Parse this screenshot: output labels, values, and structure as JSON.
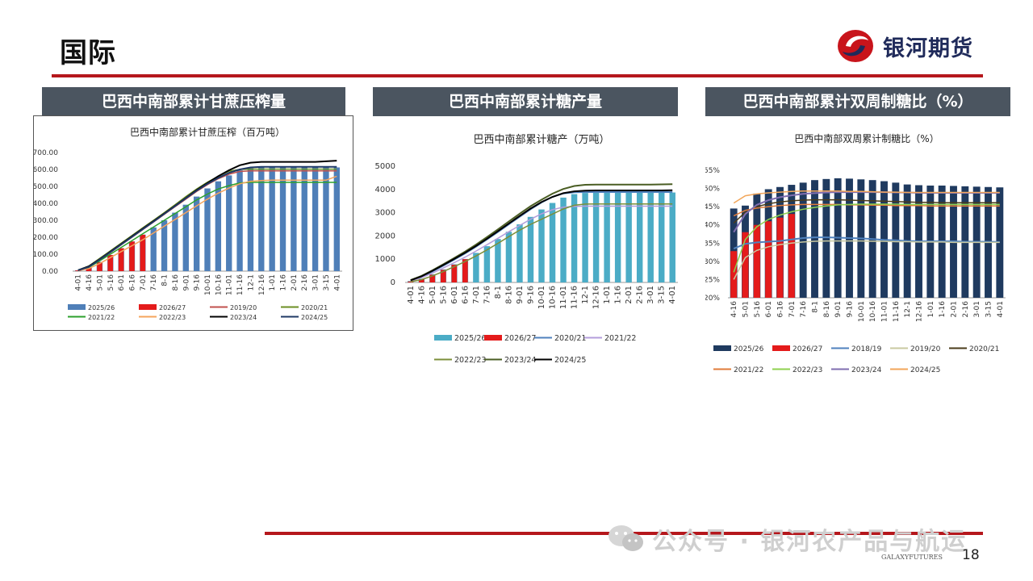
{
  "page": {
    "title": "国际",
    "brand": "银河期货",
    "page_number": "18",
    "watermark": "公众号 · 银河农产品与航运",
    "small_brand": "GALAXYFUTURES"
  },
  "colors": {
    "accent": "#b5171c",
    "header_bg": "#4b5560",
    "brand": "#1f2a5a"
  },
  "panels": [
    {
      "header": "巴西中南部累计甘蔗压榨量"
    },
    {
      "header": "巴西中南部累计糖产量"
    },
    {
      "header": "巴西中南部累计双周制糖比（%）"
    }
  ],
  "chart_data": [
    {
      "type": "bar",
      "title": "巴西中南部累计甘蔗压榨（百万吨）",
      "ylim": [
        0,
        700
      ],
      "yticks": [
        "0.00",
        "100.00",
        "200.00",
        "300.00",
        "400.00",
        "500.00",
        "600.00",
        "700.00"
      ],
      "categories": [
        "4-01",
        "4-16",
        "5-01",
        "5-16",
        "6-01",
        "6-16",
        "7-01",
        "7-16",
        "8-1",
        "8-16",
        "9-01",
        "9-16",
        "10-01",
        "10-16",
        "11-01",
        "11-16",
        "12-1",
        "12-16",
        "1-01",
        "1-16",
        "2-01",
        "2-16",
        "3-01",
        "3-15",
        "4-01"
      ],
      "legend": [
        "2025/26",
        "2026/27",
        "2019/20",
        "2020/21",
        "2021/22",
        "2022/23",
        "2023/24",
        "2024/25"
      ],
      "bars": [
        {
          "name": "2025/26",
          "color": "#4f7fb8",
          "values": [
            5,
            20,
            55,
            95,
            135,
            175,
            215,
            258,
            300,
            345,
            392,
            440,
            488,
            530,
            565,
            595,
            608,
            612,
            612,
            612,
            612,
            612,
            612,
            612,
            612
          ]
        },
        {
          "name": "2026/27",
          "color": "#e41b1b",
          "values": [
            4,
            18,
            52,
            95,
            135,
            175,
            215,
            null,
            null,
            null,
            null,
            null,
            null,
            null,
            null,
            null,
            null,
            null,
            null,
            null,
            null,
            null,
            null,
            null,
            null
          ]
        }
      ],
      "lines": [
        {
          "name": "2019/20",
          "color": "#c0504d",
          "width": 1.5,
          "values": [
            5,
            25,
            65,
            110,
            155,
            200,
            245,
            290,
            335,
            380,
            425,
            470,
            510,
            545,
            572,
            588,
            592,
            592,
            592,
            592,
            592,
            592,
            592,
            592,
            592
          ]
        },
        {
          "name": "2020/21",
          "color": "#6b8e23",
          "width": 1.5,
          "values": [
            6,
            30,
            75,
            120,
            165,
            210,
            255,
            300,
            345,
            392,
            440,
            485,
            525,
            560,
            590,
            600,
            602,
            602,
            602,
            602,
            602,
            602,
            602,
            602,
            602
          ]
        },
        {
          "name": "2021/22",
          "color": "#2ca02c",
          "width": 1.5,
          "values": [
            4,
            22,
            60,
            100,
            140,
            180,
            220,
            260,
            300,
            340,
            380,
            420,
            455,
            485,
            505,
            520,
            524,
            524,
            524,
            524,
            524,
            524,
            524,
            524,
            524
          ]
        },
        {
          "name": "2022/23",
          "color": "#f5a45d",
          "width": 1.5,
          "values": [
            3,
            15,
            45,
            80,
            115,
            150,
            185,
            225,
            265,
            305,
            345,
            385,
            425,
            460,
            490,
            515,
            530,
            535,
            537,
            537,
            537,
            537,
            537,
            537,
            560
          ]
        },
        {
          "name": "2023/24",
          "color": "#000000",
          "width": 2,
          "values": [
            5,
            28,
            70,
            115,
            160,
            205,
            250,
            295,
            340,
            385,
            432,
            478,
            520,
            560,
            595,
            625,
            640,
            645,
            645,
            645,
            645,
            645,
            645,
            648,
            652
          ]
        },
        {
          "name": "2024/25",
          "color": "#1f3864",
          "width": 2,
          "values": [
            5,
            25,
            68,
            112,
            157,
            202,
            247,
            292,
            338,
            384,
            430,
            475,
            515,
            550,
            580,
            600,
            612,
            615,
            615,
            615,
            615,
            615,
            615,
            615,
            615
          ]
        }
      ]
    },
    {
      "type": "bar",
      "title": "巴西中南部累计糖产（万吨）",
      "ylim": [
        0,
        5000
      ],
      "yticks": [
        "0",
        "1000",
        "2000",
        "3000",
        "4000",
        "5000"
      ],
      "categories": [
        "4-01",
        "4-16",
        "5-01",
        "5-16",
        "6-01",
        "6-16",
        "7-01",
        "7-16",
        "8-1",
        "8-16",
        "9-01",
        "9-16",
        "10-01",
        "10-16",
        "11-01",
        "11-16",
        "12-1",
        "12-16",
        "1-01",
        "1-16",
        "2-01",
        "2-16",
        "3-01",
        "3-15",
        "4-01"
      ],
      "legend": [
        "2025/26",
        "2026/27",
        "2020/21",
        "2021/22",
        "2022/23",
        "2023/24",
        "2024/25"
      ],
      "bars": [
        {
          "name": "2025/26",
          "color": "#4bacc6",
          "values": [
            60,
            160,
            350,
            560,
            780,
            1010,
            1270,
            1560,
            1870,
            2180,
            2500,
            2820,
            3140,
            3420,
            3650,
            3800,
            3850,
            3860,
            3860,
            3860,
            3860,
            3860,
            3860,
            3860,
            3870
          ]
        },
        {
          "name": "2026/27",
          "color": "#e41b1b",
          "values": [
            40,
            140,
            330,
            540,
            760,
            1000,
            null,
            null,
            null,
            null,
            null,
            null,
            null,
            null,
            null,
            null,
            null,
            null,
            null,
            null,
            null,
            null,
            null,
            null,
            null
          ]
        }
      ],
      "lines": [
        {
          "name": "2020/21",
          "color": "#4f81bd",
          "width": 2,
          "values": [
            80,
            240,
            470,
            720,
            980,
            1250,
            1540,
            1850,
            2170,
            2500,
            2830,
            3150,
            3440,
            3680,
            3830,
            3880,
            3890,
            3890,
            3890,
            3890,
            3890,
            3890,
            3890,
            3890,
            3890
          ]
        },
        {
          "name": "2021/22",
          "color": "#b39ddb",
          "width": 1.5,
          "values": [
            60,
            200,
            400,
            620,
            850,
            1090,
            1350,
            1620,
            1900,
            2180,
            2450,
            2720,
            2950,
            3130,
            3240,
            3270,
            3280,
            3280,
            3280,
            3280,
            3280,
            3280,
            3280,
            3280,
            3280
          ]
        },
        {
          "name": "2022/23",
          "color": "#7c8f3a",
          "width": 1.5,
          "values": [
            30,
            120,
            280,
            470,
            680,
            900,
            1140,
            1400,
            1680,
            1970,
            2250,
            2500,
            2720,
            2940,
            3160,
            3320,
            3370,
            3380,
            3380,
            3380,
            3380,
            3380,
            3380,
            3380,
            3380
          ]
        },
        {
          "name": "2023/24",
          "color": "#4a5d23",
          "width": 2,
          "values": [
            100,
            280,
            520,
            780,
            1050,
            1330,
            1630,
            1950,
            2280,
            2620,
            2960,
            3280,
            3560,
            3820,
            4020,
            4150,
            4200,
            4210,
            4210,
            4210,
            4210,
            4210,
            4210,
            4220,
            4230
          ]
        },
        {
          "name": "2024/25",
          "color": "#000000",
          "width": 2,
          "values": [
            90,
            260,
            500,
            750,
            1010,
            1280,
            1570,
            1880,
            2200,
            2530,
            2860,
            3180,
            3460,
            3680,
            3840,
            3920,
            3950,
            3960,
            3960,
            3960,
            3960,
            3960,
            3960,
            3960,
            3970
          ]
        }
      ]
    },
    {
      "type": "bar",
      "title": "巴西中南部双周累计制糖比（%）",
      "ylim": [
        20,
        55
      ],
      "yticks": [
        "20%",
        "25%",
        "30%",
        "35%",
        "40%",
        "45%",
        "50%",
        "55%"
      ],
      "categories": [
        "4-16",
        "5-01",
        "5-16",
        "6-01",
        "6-16",
        "7-01",
        "7-16",
        "8-1",
        "8-16",
        "9-01",
        "9-16",
        "10-01",
        "10-16",
        "11-01",
        "11-16",
        "12-1",
        "12-16",
        "1-01",
        "1-16",
        "2-01",
        "2-16",
        "3-01",
        "3-15",
        "4-01"
      ],
      "legend": [
        "2025/26",
        "2026/27",
        "2018/19",
        "2019/20",
        "2020/21",
        "2021/22",
        "2022/23",
        "2023/24",
        "2024/25"
      ],
      "bars": [
        {
          "name": "2025/26",
          "color": "#1f3a5f",
          "values": [
            44.5,
            45.3,
            48.6,
            49.8,
            50.4,
            51.0,
            51.6,
            52.3,
            52.6,
            52.8,
            52.7,
            52.5,
            52.3,
            52.0,
            51.6,
            51.1,
            50.9,
            50.8,
            50.8,
            50.7,
            50.6,
            50.5,
            50.4,
            50.3
          ]
        },
        {
          "name": "2026/27",
          "color": "#e41b1b",
          "values": [
            32.8,
            38.0,
            40.0,
            41.0,
            42.0,
            43.0,
            null,
            null,
            null,
            null,
            null,
            null,
            null,
            null,
            null,
            null,
            null,
            null,
            null,
            null,
            null,
            null,
            null,
            null
          ]
        }
      ],
      "lines": [
        {
          "name": "2018/19",
          "color": "#4f81bd",
          "width": 2,
          "values": [
            33.5,
            34.8,
            35.2,
            35.4,
            35.6,
            36.0,
            36.4,
            36.6,
            36.6,
            36.5,
            36.4,
            36.3,
            36.1,
            35.9,
            35.8,
            35.6,
            35.5,
            35.5,
            35.5,
            35.5,
            35.4,
            35.4,
            35.4,
            35.3
          ]
        },
        {
          "name": "2019/20",
          "color": "#c9c9a0",
          "width": 1.5,
          "values": [
            25.0,
            31.0,
            33.0,
            34.0,
            34.6,
            35.0,
            35.3,
            35.5,
            35.6,
            35.6,
            35.6,
            35.6,
            35.5,
            35.5,
            35.4,
            35.4,
            35.3,
            35.3,
            35.3,
            35.2,
            35.2,
            35.2,
            35.2,
            35.2
          ]
        },
        {
          "name": "2020/21",
          "color": "#4a3b1a",
          "width": 1.5,
          "values": [
            40.5,
            43.5,
            45.0,
            45.8,
            46.3,
            46.6,
            46.8,
            46.9,
            46.9,
            46.9,
            46.8,
            46.7,
            46.6,
            46.5,
            46.4,
            46.3,
            46.2,
            46.2,
            46.1,
            46.1,
            46.1,
            46.1,
            46.1,
            46.1
          ]
        },
        {
          "name": "2021/22",
          "color": "#e07b39",
          "width": 1.5,
          "values": [
            42.5,
            44.0,
            44.6,
            45.0,
            45.3,
            45.5,
            45.6,
            45.6,
            45.6,
            45.6,
            45.5,
            45.5,
            45.4,
            45.4,
            45.3,
            45.3,
            45.3,
            45.2,
            45.2,
            45.2,
            45.2,
            45.2,
            45.2,
            45.2
          ]
        },
        {
          "name": "2022/23",
          "color": "#8fd14f",
          "width": 1.5,
          "values": [
            27.0,
            36.0,
            39.5,
            41.5,
            42.7,
            43.6,
            44.3,
            44.8,
            45.2,
            45.5,
            45.6,
            45.7,
            45.7,
            45.7,
            45.7,
            45.6,
            45.6,
            45.6,
            45.6,
            45.6,
            45.6,
            45.6,
            45.6,
            45.6
          ]
        },
        {
          "name": "2023/24",
          "color": "#7f6eb0",
          "width": 2,
          "values": [
            38.0,
            43.0,
            45.5,
            46.8,
            47.6,
            48.1,
            48.5,
            48.7,
            48.9,
            49.0,
            49.0,
            49.0,
            49.0,
            49.0,
            48.9,
            48.9,
            48.8,
            48.8,
            48.8,
            48.8,
            48.8,
            48.8,
            48.8,
            48.8
          ]
        },
        {
          "name": "2024/25",
          "color": "#f2a65a",
          "width": 1.5,
          "values": [
            46.0,
            48.0,
            48.5,
            48.8,
            49.0,
            49.2,
            49.3,
            49.3,
            49.3,
            49.3,
            49.2,
            49.2,
            49.1,
            49.0,
            49.0,
            48.9,
            48.9,
            48.9,
            48.9,
            48.9,
            48.9,
            48.9,
            48.9,
            48.9
          ]
        }
      ]
    }
  ]
}
